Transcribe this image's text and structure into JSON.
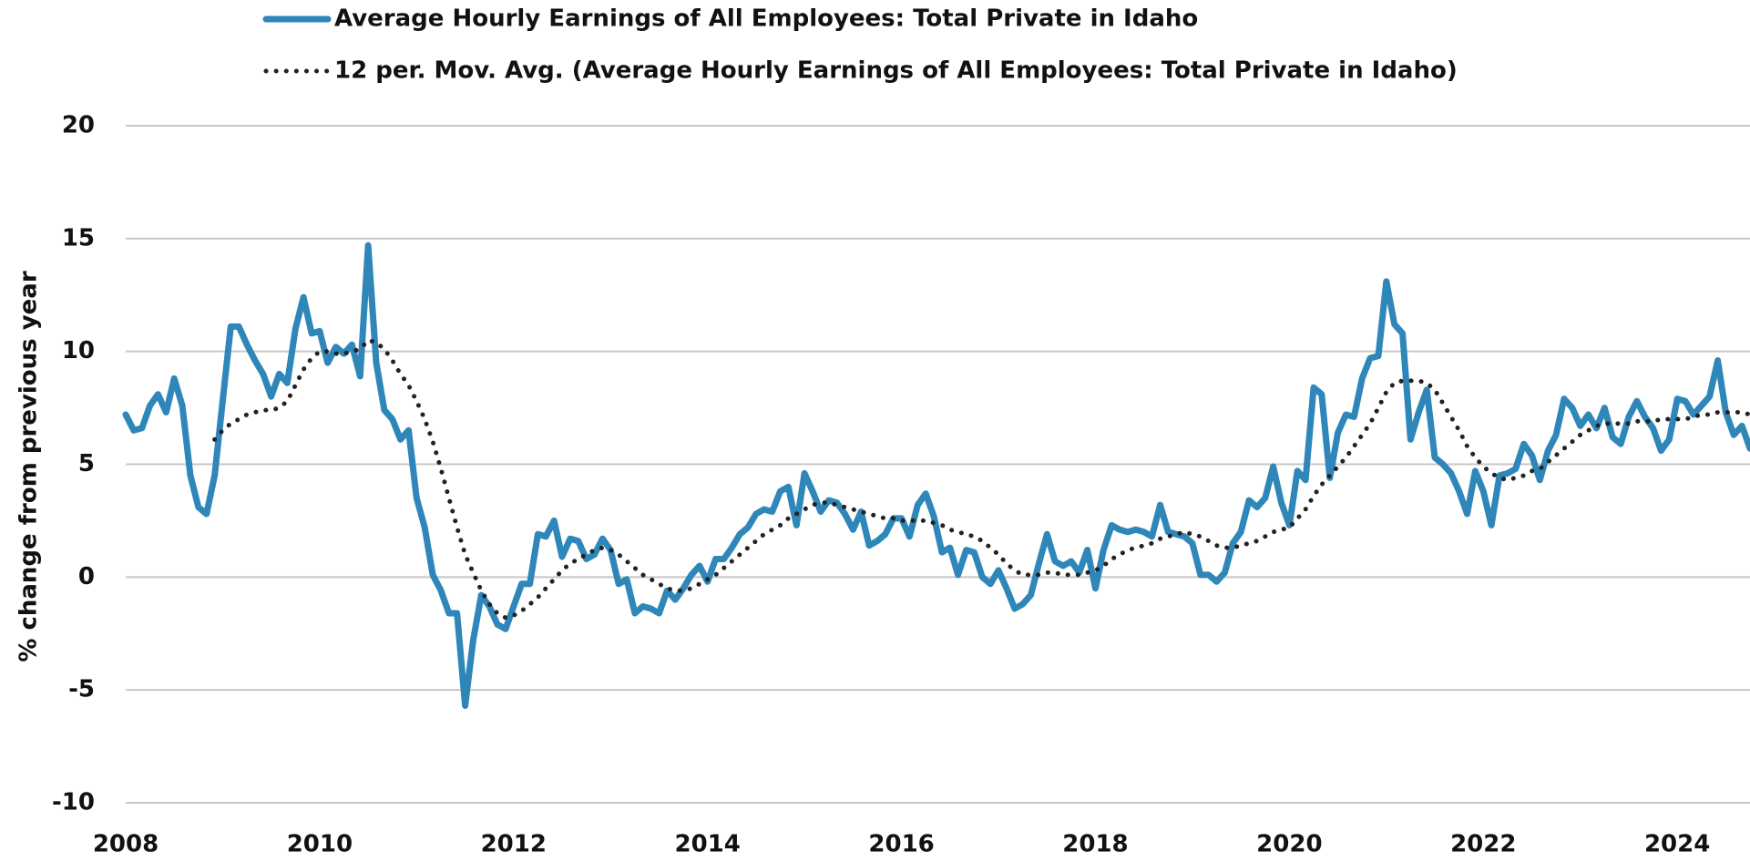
{
  "chart_data": {
    "type": "line",
    "y_label": "% change from previous year",
    "x": [
      2008,
      2008.083,
      2008.167,
      2008.25,
      2008.333,
      2008.417,
      2008.5,
      2008.583,
      2008.667,
      2008.75,
      2008.833,
      2008.917,
      2009,
      2009.083,
      2009.167,
      2009.25,
      2009.333,
      2009.417,
      2009.5,
      2009.583,
      2009.667,
      2009.75,
      2009.833,
      2009.917,
      2010,
      2010.083,
      2010.167,
      2010.25,
      2010.333,
      2010.417,
      2010.5,
      2010.583,
      2010.667,
      2010.75,
      2010.833,
      2010.917,
      2011,
      2011.083,
      2011.167,
      2011.25,
      2011.333,
      2011.417,
      2011.5,
      2011.583,
      2011.667,
      2011.75,
      2011.833,
      2011.917,
      2012,
      2012.083,
      2012.167,
      2012.25,
      2012.333,
      2012.417,
      2012.5,
      2012.583,
      2012.667,
      2012.75,
      2012.833,
      2012.917,
      2013,
      2013.083,
      2013.167,
      2013.25,
      2013.333,
      2013.417,
      2013.5,
      2013.583,
      2013.667,
      2013.75,
      2013.833,
      2013.917,
      2014,
      2014.083,
      2014.167,
      2014.25,
      2014.333,
      2014.417,
      2014.5,
      2014.583,
      2014.667,
      2014.75,
      2014.833,
      2014.917,
      2015,
      2015.083,
      2015.167,
      2015.25,
      2015.333,
      2015.417,
      2015.5,
      2015.583,
      2015.667,
      2015.75,
      2015.833,
      2015.917,
      2016,
      2016.083,
      2016.167,
      2016.25,
      2016.333,
      2016.417,
      2016.5,
      2016.583,
      2016.667,
      2016.75,
      2016.833,
      2016.917,
      2017,
      2017.083,
      2017.167,
      2017.25,
      2017.333,
      2017.417,
      2017.5,
      2017.583,
      2017.667,
      2017.75,
      2017.833,
      2017.917,
      2018,
      2018.083,
      2018.167,
      2018.25,
      2018.333,
      2018.417,
      2018.5,
      2018.583,
      2018.667,
      2018.75,
      2018.833,
      2018.917,
      2019,
      2019.083,
      2019.167,
      2019.25,
      2019.333,
      2019.417,
      2019.5,
      2019.583,
      2019.667,
      2019.75,
      2019.833,
      2019.917,
      2020,
      2020.083,
      2020.167,
      2020.25,
      2020.333,
      2020.417,
      2020.5,
      2020.583,
      2020.667,
      2020.75,
      2020.833,
      2020.917,
      2021,
      2021.083,
      2021.167,
      2021.25,
      2021.333,
      2021.417,
      2021.5,
      2021.583,
      2021.667,
      2021.75,
      2021.833,
      2021.917,
      2022,
      2022.083,
      2022.167,
      2022.25,
      2022.333,
      2022.417,
      2022.5,
      2022.583,
      2022.667,
      2022.75,
      2022.833,
      2022.917,
      2023,
      2023.083,
      2023.167,
      2023.25,
      2023.333,
      2023.417,
      2023.5,
      2023.583,
      2023.667,
      2023.75,
      2023.833,
      2023.917,
      2024,
      2024.083,
      2024.167,
      2024.25,
      2024.333,
      2024.417,
      2024.5,
      2024.583,
      2024.667,
      2024.75
    ],
    "series": [
      {
        "name": "Average Hourly Earnings of All Employees: Total Private in Idaho",
        "color": "#2e86b9",
        "style": "solid",
        "values": [
          7.2,
          6.5,
          6.6,
          7.6,
          8.1,
          7.3,
          8.8,
          7.6,
          4.5,
          3.1,
          2.8,
          4.5,
          7.8,
          11.1,
          11.1,
          10.3,
          9.6,
          9.0,
          8.0,
          9.0,
          8.6,
          11.0,
          12.4,
          10.8,
          10.9,
          9.5,
          10.2,
          9.9,
          10.3,
          8.9,
          14.7,
          9.5,
          7.4,
          7.0,
          6.1,
          6.5,
          3.5,
          2.2,
          0.1,
          -0.6,
          -1.6,
          -1.6,
          -5.7,
          -2.8,
          -0.8,
          -1.3,
          -2.1,
          -2.3,
          -1.3,
          -0.3,
          -0.3,
          1.9,
          1.8,
          2.5,
          0.9,
          1.7,
          1.6,
          0.8,
          1.0,
          1.7,
          1.2,
          -0.3,
          -0.1,
          -1.6,
          -1.3,
          -1.4,
          -1.6,
          -0.6,
          -1.0,
          -0.5,
          0.1,
          0.5,
          -0.2,
          0.8,
          0.8,
          1.3,
          1.9,
          2.2,
          2.8,
          3.0,
          2.9,
          3.8,
          4.0,
          2.3,
          4.6,
          3.8,
          2.9,
          3.4,
          3.3,
          2.8,
          2.1,
          2.9,
          1.4,
          1.6,
          1.9,
          2.6,
          2.6,
          1.8,
          3.2,
          3.7,
          2.7,
          1.1,
          1.3,
          0.1,
          1.2,
          1.1,
          0.0,
          -0.3,
          0.3,
          -0.5,
          -1.4,
          -1.2,
          -0.8,
          0.6,
          1.9,
          0.7,
          0.5,
          0.7,
          0.2,
          1.2,
          -0.5,
          1.2,
          2.3,
          2.1,
          2.0,
          2.1,
          2.0,
          1.8,
          3.2,
          2.0,
          1.9,
          1.8,
          1.5,
          0.1,
          0.1,
          -0.2,
          0.2,
          1.5,
          2.0,
          3.4,
          3.1,
          3.5,
          4.9,
          3.3,
          2.3,
          4.7,
          4.3,
          8.4,
          8.1,
          4.4,
          6.4,
          7.2,
          7.1,
          8.8,
          9.7,
          9.8,
          13.1,
          11.2,
          10.8,
          6.1,
          7.3,
          8.3,
          5.3,
          5.0,
          4.6,
          3.8,
          2.8,
          4.7,
          3.8,
          2.3,
          4.5,
          4.6,
          4.8,
          5.9,
          5.4,
          4.3,
          5.6,
          6.3,
          7.9,
          7.5,
          6.7,
          7.2,
          6.6,
          7.5,
          6.2,
          5.9,
          7.1,
          7.8,
          7.1,
          6.6,
          5.6,
          6.1,
          7.9,
          7.8,
          7.2,
          7.6,
          8.0,
          9.6,
          7.3,
          6.3,
          6.7,
          5.7
        ]
      },
      {
        "name": "12 per. Mov. Avg. (Average Hourly Earnings of All Employees: Total Private in Idaho)",
        "color": "#222222",
        "style": "dotted",
        "values": [
          null,
          null,
          null,
          null,
          null,
          null,
          null,
          null,
          null,
          null,
          null,
          6.1,
          6.5,
          6.8,
          7.0,
          7.2,
          7.3,
          7.4,
          7.4,
          7.5,
          7.8,
          8.5,
          9.2,
          9.7,
          10.0,
          10.0,
          9.9,
          9.9,
          10.0,
          10.1,
          10.5,
          10.4,
          10.1,
          9.6,
          9.0,
          8.5,
          7.8,
          7.0,
          6.0,
          4.8,
          3.5,
          2.2,
          1.0,
          0.2,
          -0.6,
          -1.2,
          -1.6,
          -1.8,
          -1.7,
          -1.5,
          -1.2,
          -0.9,
          -0.5,
          -0.1,
          0.3,
          0.6,
          0.8,
          1.0,
          1.2,
          1.3,
          1.2,
          1.0,
          0.7,
          0.4,
          0.1,
          -0.1,
          -0.3,
          -0.5,
          -0.6,
          -0.6,
          -0.5,
          -0.3,
          -0.1,
          0.1,
          0.4,
          0.7,
          1.0,
          1.3,
          1.6,
          1.9,
          2.1,
          2.3,
          2.6,
          2.8,
          3.0,
          3.2,
          3.3,
          3.3,
          3.2,
          3.1,
          3.0,
          2.9,
          2.8,
          2.7,
          2.6,
          2.6,
          2.5,
          2.5,
          2.5,
          2.5,
          2.4,
          2.3,
          2.1,
          2.0,
          1.9,
          1.8,
          1.6,
          1.3,
          1.0,
          0.6,
          0.3,
          0.1,
          0.1,
          0.1,
          0.2,
          0.2,
          0.1,
          0.1,
          0.1,
          0.2,
          0.3,
          0.5,
          0.8,
          1.0,
          1.2,
          1.3,
          1.4,
          1.5,
          1.7,
          1.8,
          1.9,
          2.0,
          1.9,
          1.8,
          1.6,
          1.4,
          1.3,
          1.3,
          1.4,
          1.5,
          1.6,
          1.8,
          2.0,
          2.1,
          2.2,
          2.6,
          3.0,
          3.6,
          4.1,
          4.5,
          4.9,
          5.3,
          5.8,
          6.3,
          6.8,
          7.5,
          8.2,
          8.6,
          8.7,
          8.7,
          8.7,
          8.6,
          8.3,
          7.7,
          7.1,
          6.5,
          5.8,
          5.3,
          4.9,
          4.6,
          4.4,
          4.3,
          4.4,
          4.5,
          4.7,
          4.8,
          5.1,
          5.4,
          5.7,
          6.0,
          6.3,
          6.5,
          6.7,
          6.8,
          6.8,
          6.8,
          6.8,
          6.9,
          6.9,
          6.9,
          7.0,
          7.0,
          7.0,
          7.0,
          7.1,
          7.2,
          7.2,
          7.3,
          7.3,
          7.3,
          7.3,
          7.2
        ]
      }
    ],
    "xlim": [
      2008,
      2024.75
    ],
    "xticks": [
      2008,
      2010,
      2012,
      2014,
      2016,
      2018,
      2020,
      2022,
      2024
    ],
    "ylim": [
      -10,
      20
    ],
    "yticks": [
      -10,
      -5,
      0,
      5,
      10,
      15,
      20
    ],
    "grid": true,
    "legend": "top"
  }
}
